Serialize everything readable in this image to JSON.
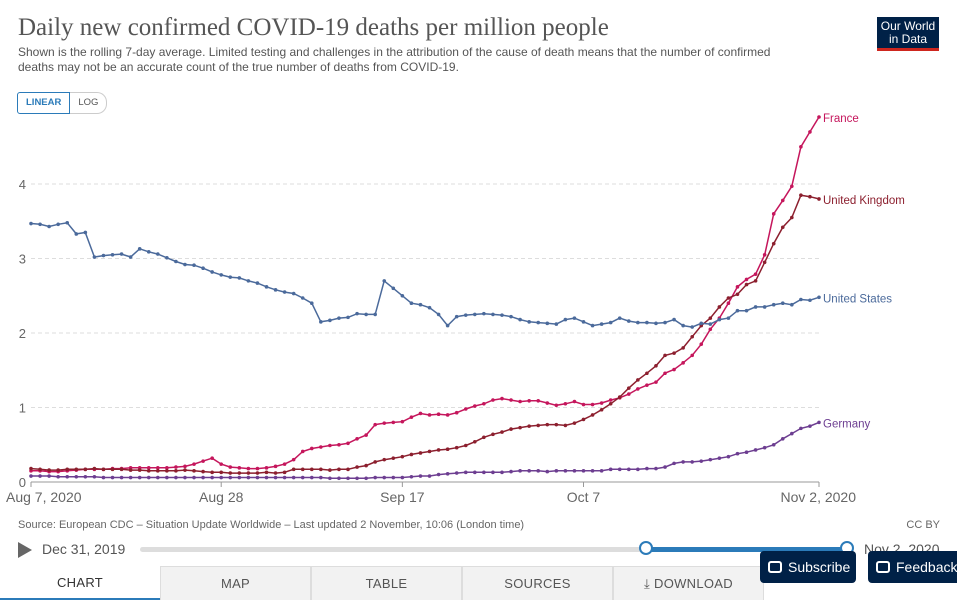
{
  "header": {
    "title": "Daily new confirmed COVID-19 deaths per million people",
    "subtitle": "Shown is the rolling 7-day average. Limited testing and challenges in the attribution of the cause of death means that the number of confirmed deaths may not be an accurate count of the true number of deaths from COVID-19.",
    "logo_line1": "Our World",
    "logo_line2": "in Data"
  },
  "scale_toggle": {
    "linear": "LINEAR",
    "log": "LOG"
  },
  "chart_data": {
    "type": "line",
    "title": "Daily new confirmed COVID-19 deaths per million people",
    "x_tick_labels": [
      "Aug 7, 2020",
      "Aug 28",
      "Sep 17",
      "Oct 7",
      "Nov 2, 2020"
    ],
    "x_tick_day_index": [
      0,
      21,
      41,
      61,
      87
    ],
    "x_range": [
      0,
      87
    ],
    "ylim": [
      0,
      4.9
    ],
    "y_ticks": [
      0,
      1,
      2,
      3,
      4
    ],
    "series": [
      {
        "name": "France",
        "color": "#c5165c",
        "values": [
          0.15,
          0.15,
          0.14,
          0.14,
          0.15,
          0.16,
          0.17,
          0.17,
          0.17,
          0.18,
          0.18,
          0.19,
          0.19,
          0.19,
          0.19,
          0.19,
          0.2,
          0.21,
          0.24,
          0.28,
          0.32,
          0.24,
          0.2,
          0.19,
          0.18,
          0.18,
          0.19,
          0.21,
          0.24,
          0.3,
          0.41,
          0.45,
          0.47,
          0.49,
          0.5,
          0.52,
          0.58,
          0.63,
          0.77,
          0.79,
          0.8,
          0.81,
          0.87,
          0.92,
          0.9,
          0.91,
          0.9,
          0.93,
          0.98,
          1.02,
          1.05,
          1.1,
          1.12,
          1.1,
          1.08,
          1.09,
          1.09,
          1.06,
          1.03,
          1.05,
          1.08,
          1.04,
          1.04,
          1.06,
          1.1,
          1.13,
          1.18,
          1.25,
          1.3,
          1.34,
          1.46,
          1.51,
          1.6,
          1.7,
          1.85,
          2.05,
          2.2,
          2.4,
          2.62,
          2.72,
          2.79,
          3.05,
          3.6,
          3.78,
          3.97,
          4.5,
          4.7,
          4.9
        ]
      },
      {
        "name": "United Kingdom",
        "color": "#8c1f2e",
        "values": [
          0.18,
          0.17,
          0.16,
          0.16,
          0.17,
          0.17,
          0.17,
          0.18,
          0.17,
          0.17,
          0.17,
          0.16,
          0.16,
          0.15,
          0.15,
          0.15,
          0.15,
          0.16,
          0.15,
          0.14,
          0.13,
          0.13,
          0.12,
          0.12,
          0.12,
          0.12,
          0.13,
          0.12,
          0.13,
          0.17,
          0.17,
          0.17,
          0.17,
          0.16,
          0.17,
          0.17,
          0.2,
          0.22,
          0.27,
          0.3,
          0.32,
          0.34,
          0.37,
          0.39,
          0.41,
          0.43,
          0.44,
          0.46,
          0.49,
          0.54,
          0.6,
          0.64,
          0.67,
          0.71,
          0.73,
          0.75,
          0.76,
          0.77,
          0.77,
          0.76,
          0.79,
          0.84,
          0.9,
          0.97,
          1.05,
          1.14,
          1.26,
          1.37,
          1.46,
          1.56,
          1.7,
          1.73,
          1.8,
          1.95,
          2.1,
          2.2,
          2.35,
          2.47,
          2.52,
          2.65,
          2.7,
          2.95,
          3.2,
          3.42,
          3.55,
          3.85,
          3.83,
          3.8
        ]
      },
      {
        "name": "United States",
        "color": "#4b6a9b",
        "values": [
          3.47,
          3.46,
          3.43,
          3.46,
          3.48,
          3.33,
          3.35,
          3.02,
          3.04,
          3.05,
          3.06,
          3.02,
          3.13,
          3.09,
          3.06,
          3.01,
          2.96,
          2.92,
          2.91,
          2.87,
          2.82,
          2.78,
          2.75,
          2.74,
          2.7,
          2.67,
          2.62,
          2.58,
          2.55,
          2.53,
          2.47,
          2.4,
          2.15,
          2.17,
          2.2,
          2.21,
          2.26,
          2.25,
          2.25,
          2.7,
          2.6,
          2.5,
          2.4,
          2.38,
          2.34,
          2.25,
          2.1,
          2.22,
          2.24,
          2.25,
          2.26,
          2.25,
          2.24,
          2.22,
          2.18,
          2.15,
          2.14,
          2.13,
          2.12,
          2.18,
          2.2,
          2.15,
          2.1,
          2.12,
          2.14,
          2.2,
          2.16,
          2.14,
          2.14,
          2.13,
          2.14,
          2.18,
          2.1,
          2.08,
          2.13,
          2.12,
          2.18,
          2.2,
          2.3,
          2.3,
          2.35,
          2.35,
          2.38,
          2.4,
          2.38,
          2.45,
          2.44,
          2.48
        ]
      },
      {
        "name": "Germany",
        "color": "#6d3e91",
        "values": [
          0.08,
          0.08,
          0.08,
          0.07,
          0.07,
          0.07,
          0.07,
          0.07,
          0.06,
          0.06,
          0.06,
          0.06,
          0.06,
          0.06,
          0.06,
          0.06,
          0.06,
          0.06,
          0.06,
          0.06,
          0.06,
          0.06,
          0.06,
          0.06,
          0.06,
          0.06,
          0.06,
          0.06,
          0.06,
          0.06,
          0.06,
          0.06,
          0.06,
          0.05,
          0.05,
          0.05,
          0.05,
          0.05,
          0.06,
          0.06,
          0.06,
          0.06,
          0.07,
          0.08,
          0.08,
          0.1,
          0.11,
          0.12,
          0.13,
          0.13,
          0.13,
          0.13,
          0.13,
          0.14,
          0.15,
          0.15,
          0.15,
          0.14,
          0.15,
          0.15,
          0.15,
          0.15,
          0.15,
          0.15,
          0.17,
          0.17,
          0.17,
          0.17,
          0.18,
          0.18,
          0.2,
          0.25,
          0.27,
          0.27,
          0.28,
          0.3,
          0.32,
          0.34,
          0.38,
          0.4,
          0.43,
          0.46,
          0.5,
          0.58,
          0.65,
          0.72,
          0.75,
          0.8
        ]
      }
    ]
  },
  "footer": {
    "source": "Source: European CDC – Situation Update Worldwide – Last updated 2 November, 10:06 (London time)",
    "license": "CC BY"
  },
  "timeline": {
    "start_label": "Dec 31, 2019",
    "end_label": "Nov 2, 2020"
  },
  "tabs": [
    "CHART",
    "MAP",
    "TABLE",
    "SOURCES",
    "DOWNLOAD"
  ],
  "buttons": {
    "subscribe": "Subscribe",
    "feedback": "Feedback"
  }
}
